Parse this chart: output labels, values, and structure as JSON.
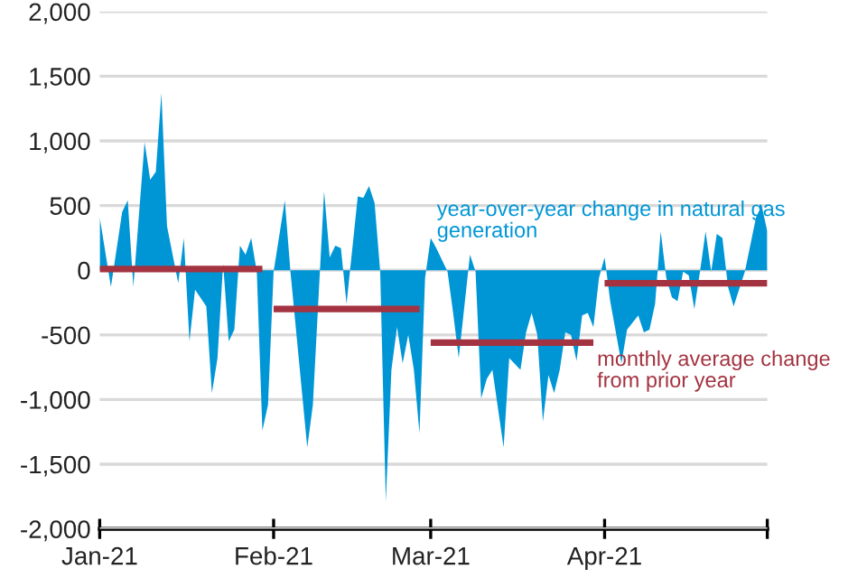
{
  "chart_data": {
    "type": "area",
    "ylim": [
      -2000,
      2000
    ],
    "yticks": [
      {
        "value": -2000,
        "label": "-2,000"
      },
      {
        "value": -1500,
        "label": "-1,500"
      },
      {
        "value": -1000,
        "label": "-1,000"
      },
      -500,
      0,
      500,
      {
        "value": 1000,
        "label": "1,000"
      },
      {
        "value": 1500,
        "label": "1,500"
      },
      {
        "value": 2000,
        "label": "2,000"
      }
    ],
    "xlim": [
      "2021-01-01",
      "2021-04-30"
    ],
    "xticks": [
      {
        "value": "2021-01-01",
        "label": "Jan-21"
      },
      {
        "value": "2021-02-01",
        "label": "Feb-21"
      },
      {
        "value": "2021-03-01",
        "label": "Mar-21"
      },
      {
        "value": "2021-04-01",
        "label": "Apr-21"
      },
      {
        "value": "2021-04-30",
        "label": null
      }
    ],
    "grid": "y",
    "legend": false,
    "series": [
      {
        "name": "year-over-year change in natural gas generation",
        "color": "#0096d6",
        "x": [
          "2021-01-01",
          "2021-01-03",
          "2021-01-05",
          "2021-01-06",
          "2021-01-07",
          "2021-01-09",
          "2021-01-10",
          "2021-01-11",
          "2021-01-12",
          "2021-01-13",
          "2021-01-15",
          "2021-01-16",
          "2021-01-17",
          "2021-01-18",
          "2021-01-20",
          "2021-01-21",
          "2021-01-22",
          "2021-01-23",
          "2021-01-24",
          "2021-01-25",
          "2021-01-26",
          "2021-01-27",
          "2021-01-28",
          "2021-01-29",
          "2021-01-30",
          "2021-01-31",
          "2021-02-01",
          "2021-02-03",
          "2021-02-04",
          "2021-02-07",
          "2021-02-08",
          "2021-02-10",
          "2021-02-11",
          "2021-02-12",
          "2021-02-13",
          "2021-02-14",
          "2021-02-16",
          "2021-02-17",
          "2021-02-18",
          "2021-02-19",
          "2021-02-20",
          "2021-02-21",
          "2021-02-22",
          "2021-02-23",
          "2021-02-24",
          "2021-02-25",
          "2021-02-26",
          "2021-02-27",
          "2021-02-28",
          "2021-03-01",
          "2021-03-02",
          "2021-03-04",
          "2021-03-05",
          "2021-03-06",
          "2021-03-08",
          "2021-03-09",
          "2021-03-10",
          "2021-03-11",
          "2021-03-12",
          "2021-03-14",
          "2021-03-15",
          "2021-03-17",
          "2021-03-18",
          "2021-03-19",
          "2021-03-20",
          "2021-03-21",
          "2021-03-22",
          "2021-03-23",
          "2021-03-24",
          "2021-03-25",
          "2021-03-26",
          "2021-03-27",
          "2021-03-28",
          "2021-03-29",
          "2021-03-30",
          "2021-03-31",
          "2021-04-01",
          "2021-04-02",
          "2021-04-04",
          "2021-04-05",
          "2021-04-07",
          "2021-04-08",
          "2021-04-09",
          "2021-04-10",
          "2021-04-11",
          "2021-04-12",
          "2021-04-13",
          "2021-04-14",
          "2021-04-15",
          "2021-04-16",
          "2021-04-17",
          "2021-04-18",
          "2021-04-19",
          "2021-04-20",
          "2021-04-21",
          "2021-04-22",
          "2021-04-23",
          "2021-04-24",
          "2021-04-26",
          "2021-04-28",
          "2021-04-29",
          "2021-04-30"
        ],
        "values": [
          410,
          -130,
          450,
          540,
          -130,
          990,
          700,
          760,
          1370,
          340,
          -100,
          250,
          -550,
          -150,
          -280,
          -950,
          -680,
          50,
          -550,
          -460,
          190,
          120,
          250,
          -10,
          -1240,
          -1040,
          -10,
          540,
          -10,
          -1370,
          -1040,
          610,
          100,
          190,
          170,
          -260,
          570,
          560,
          650,
          520,
          -10,
          -1790,
          -770,
          -440,
          -720,
          -500,
          -770,
          -1260,
          -60,
          250,
          170,
          -10,
          -330,
          -680,
          120,
          -10,
          -990,
          -840,
          -770,
          -1370,
          -680,
          -770,
          -480,
          -330,
          -500,
          -1170,
          -810,
          -950,
          -770,
          -480,
          -500,
          -700,
          -350,
          -330,
          -440,
          -60,
          100,
          -240,
          -720,
          -460,
          -350,
          -480,
          -460,
          -260,
          300,
          -60,
          -210,
          -240,
          -10,
          -40,
          -300,
          -10,
          300,
          -10,
          280,
          250,
          -130,
          -280,
          -10,
          410,
          500,
          300
        ]
      },
      {
        "name": "monthly average change from prior year",
        "type": "line",
        "color": "#a33340",
        "x": [
          "2021-01-01",
          "2021-01-30",
          "2021-01-31",
          "2021-02-01",
          "2021-02-27",
          "2021-02-28",
          "2021-03-01",
          "2021-03-30",
          "2021-03-31",
          "2021-04-01",
          "2021-04-30"
        ],
        "values": [
          10,
          10,
          null,
          -300,
          -300,
          null,
          -560,
          -560,
          null,
          -100,
          -100
        ]
      }
    ]
  }
}
